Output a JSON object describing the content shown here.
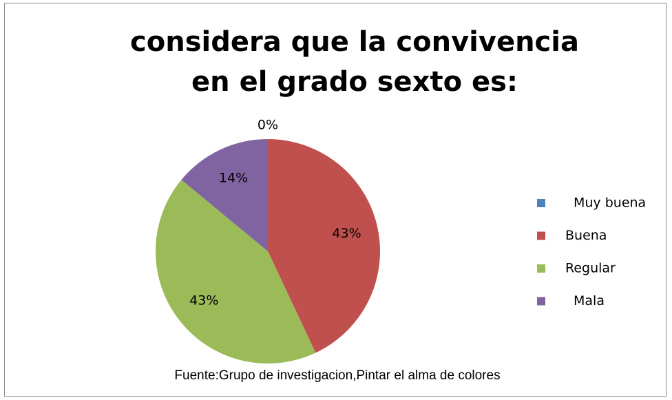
{
  "chart_data": {
    "type": "pie",
    "title": "considera que la convivencia en el grado sexto es:",
    "categories": [
      "Muy buena",
      "Buena",
      "Regular",
      "Mala"
    ],
    "values": [
      0,
      43,
      43,
      14
    ],
    "value_labels": [
      "0%",
      "43%",
      "43%",
      "14%"
    ],
    "colors": [
      "#4F81BD",
      "#C0504D",
      "#9BBB59",
      "#8064A2"
    ],
    "legend": "right",
    "note": "Fuente:Grupo de investigacion,Pintar el alma de colores"
  }
}
